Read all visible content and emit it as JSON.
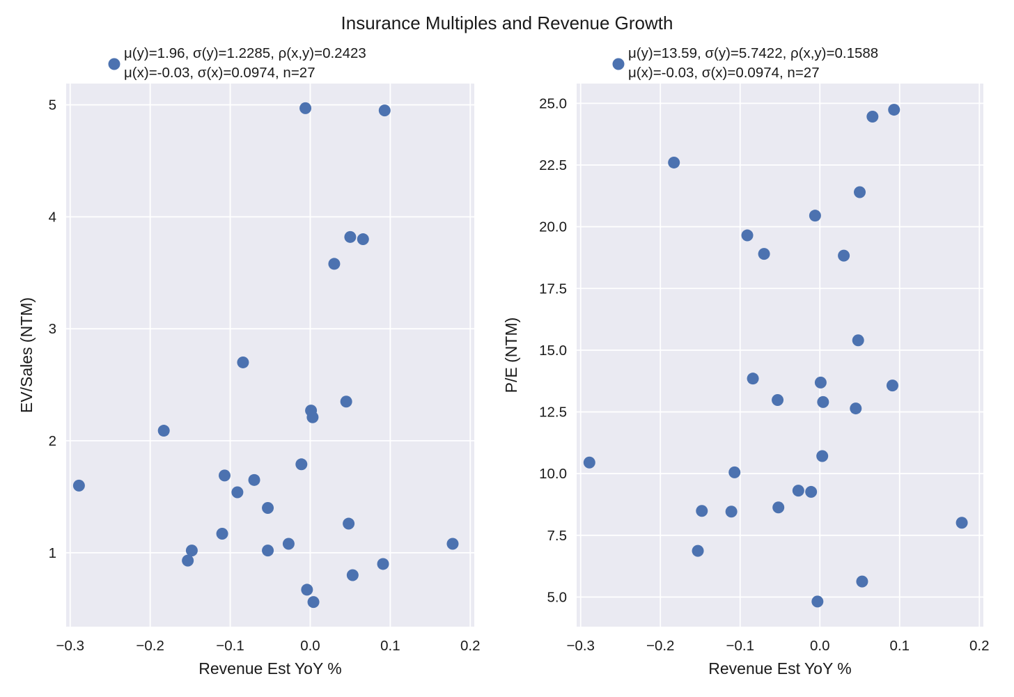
{
  "suptitle": "Insurance Multiples and Revenue Growth",
  "colors": {
    "plot_background": "#EAEAF2",
    "grid": "#ffffff",
    "marker": "#4C72B0"
  },
  "chart_data": [
    {
      "type": "scatter",
      "xlabel": "Revenue Est YoY %",
      "ylabel": "EV/Sales (NTM)",
      "xlim": [
        -0.305,
        0.205
      ],
      "ylim": [
        0.34,
        5.19
      ],
      "xticks": [
        -0.3,
        -0.2,
        -0.1,
        0.0,
        0.1,
        0.2
      ],
      "xtick_labels": [
        "−0.3",
        "−0.2",
        "−0.1",
        "0.0",
        "0.1",
        "0.2"
      ],
      "yticks": [
        1,
        2,
        3,
        4,
        5
      ],
      "ytick_labels": [
        "1",
        "2",
        "3",
        "4",
        "5"
      ],
      "grid": true,
      "legend_location": "above plot",
      "legend": [
        "μ(y)=1.96, σ(y)=1.2285, ρ(x,y)=0.2423",
        "μ(x)=-0.03, σ(x)=0.0974, n=27"
      ],
      "x": [
        -0.289,
        -0.183,
        -0.153,
        -0.148,
        -0.11,
        -0.107,
        -0.091,
        -0.084,
        -0.07,
        -0.053,
        -0.053,
        -0.027,
        -0.011,
        -0.006,
        -0.004,
        0.001,
        0.003,
        0.004,
        0.03,
        0.045,
        0.048,
        0.05,
        0.053,
        0.066,
        0.091,
        0.093,
        0.178
      ],
      "y": [
        1.6,
        2.09,
        0.93,
        1.02,
        1.17,
        1.69,
        1.54,
        2.7,
        1.65,
        1.4,
        1.02,
        1.08,
        1.79,
        4.97,
        0.67,
        2.27,
        2.21,
        0.56,
        3.58,
        2.35,
        1.26,
        3.82,
        0.8,
        3.8,
        0.9,
        4.95,
        1.08
      ]
    },
    {
      "type": "scatter",
      "xlabel": "Revenue Est YoY %",
      "ylabel": "P/E (NTM)",
      "xlim": [
        -0.305,
        0.205
      ],
      "ylim": [
        3.8,
        25.8
      ],
      "xticks": [
        -0.3,
        -0.2,
        -0.1,
        0.0,
        0.1,
        0.2
      ],
      "xtick_labels": [
        "−0.3",
        "−0.2",
        "−0.1",
        "0.0",
        "0.1",
        "0.2"
      ],
      "yticks": [
        5.0,
        7.5,
        10.0,
        12.5,
        15.0,
        17.5,
        20.0,
        22.5,
        25.0
      ],
      "ytick_labels": [
        "5.0",
        "7.5",
        "10.0",
        "12.5",
        "15.0",
        "17.5",
        "20.0",
        "22.5",
        "25.0"
      ],
      "grid": true,
      "legend_location": "above plot",
      "legend": [
        "μ(y)=13.59, σ(y)=5.7422, ρ(x,y)=0.1588",
        "μ(x)=-0.03, σ(x)=0.0974, n=27"
      ],
      "x": [
        -0.289,
        -0.183,
        -0.153,
        -0.148,
        -0.111,
        -0.107,
        -0.091,
        -0.084,
        -0.07,
        -0.053,
        -0.052,
        -0.027,
        -0.011,
        -0.006,
        -0.003,
        0.001,
        0.004,
        0.003,
        0.03,
        0.045,
        0.048,
        0.05,
        0.053,
        0.066,
        0.091,
        0.093,
        0.178
      ],
      "y": [
        10.45,
        22.6,
        6.87,
        8.49,
        8.46,
        10.05,
        19.65,
        13.85,
        18.9,
        12.98,
        8.63,
        9.31,
        9.26,
        20.45,
        4.82,
        13.69,
        12.9,
        10.71,
        18.83,
        12.64,
        15.4,
        21.4,
        5.63,
        24.46,
        13.57,
        24.74,
        8.01
      ]
    }
  ]
}
